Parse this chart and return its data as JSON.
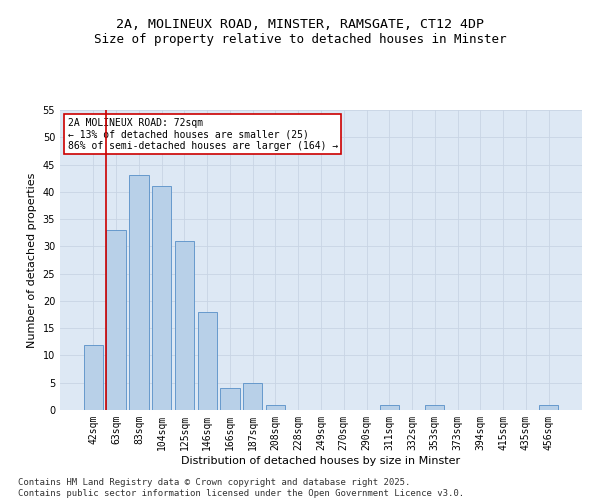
{
  "title_line1": "2A, MOLINEUX ROAD, MINSTER, RAMSGATE, CT12 4DP",
  "title_line2": "Size of property relative to detached houses in Minster",
  "xlabel": "Distribution of detached houses by size in Minster",
  "ylabel": "Number of detached properties",
  "categories": [
    "42sqm",
    "63sqm",
    "83sqm",
    "104sqm",
    "125sqm",
    "146sqm",
    "166sqm",
    "187sqm",
    "208sqm",
    "228sqm",
    "249sqm",
    "270sqm",
    "290sqm",
    "311sqm",
    "332sqm",
    "353sqm",
    "373sqm",
    "394sqm",
    "415sqm",
    "435sqm",
    "456sqm"
  ],
  "values": [
    12,
    33,
    43,
    41,
    31,
    18,
    4,
    5,
    1,
    0,
    0,
    0,
    0,
    1,
    0,
    1,
    0,
    0,
    0,
    0,
    1
  ],
  "bar_color": "#b8d0e8",
  "bar_edge_color": "#6699cc",
  "vline_color": "#cc0000",
  "vline_pos": 0.55,
  "annotation_text": "2A MOLINEUX ROAD: 72sqm\n← 13% of detached houses are smaller (25)\n86% of semi-detached houses are larger (164) →",
  "annotation_box_color": "#ffffff",
  "annotation_box_edge": "#cc0000",
  "ylim": [
    0,
    55
  ],
  "yticks": [
    0,
    5,
    10,
    15,
    20,
    25,
    30,
    35,
    40,
    45,
    50,
    55
  ],
  "grid_color": "#c8d4e4",
  "bg_color": "#dde8f4",
  "footer_text": "Contains HM Land Registry data © Crown copyright and database right 2025.\nContains public sector information licensed under the Open Government Licence v3.0.",
  "title_fontsize": 9.5,
  "subtitle_fontsize": 9,
  "axis_label_fontsize": 8,
  "tick_fontsize": 7,
  "annotation_fontsize": 7,
  "footer_fontsize": 6.5
}
